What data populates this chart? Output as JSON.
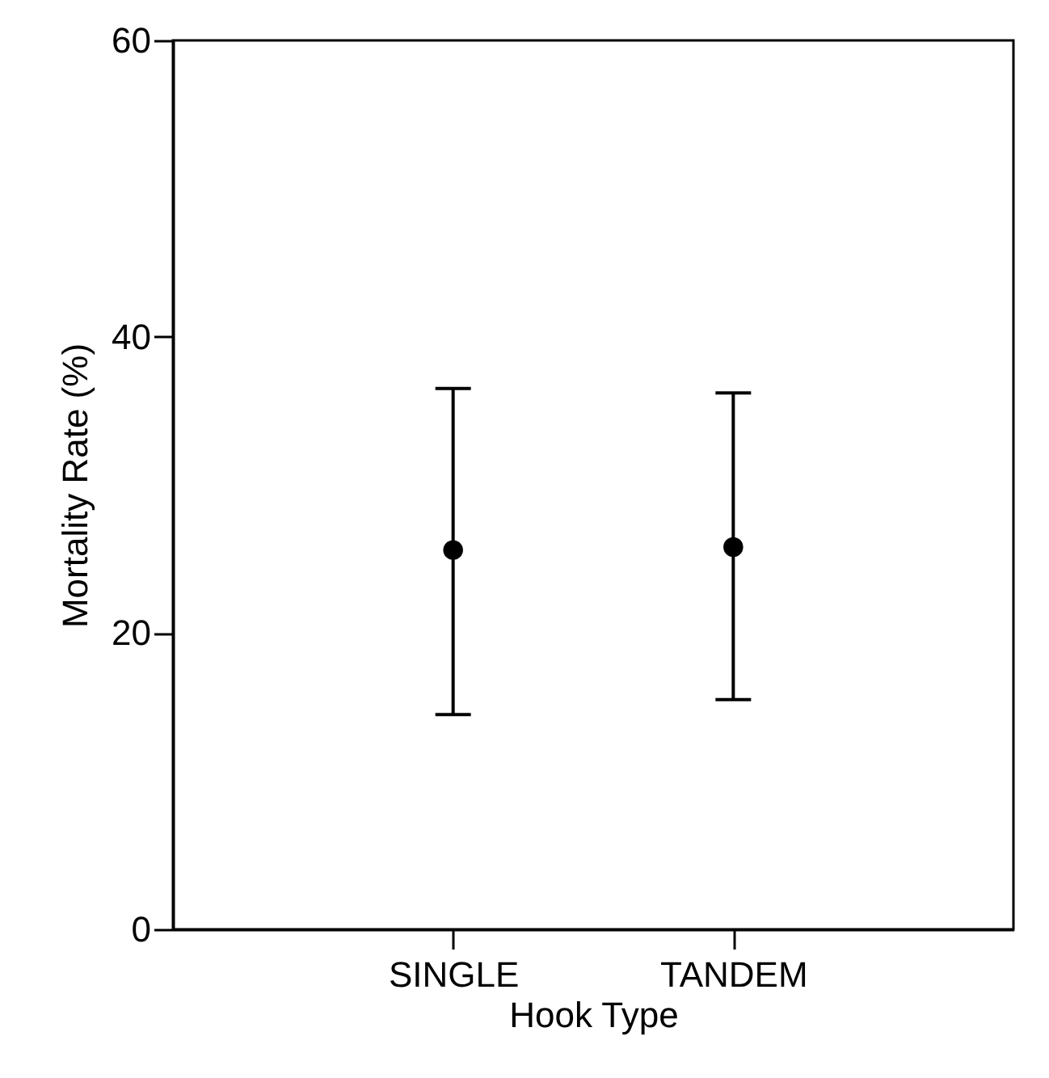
{
  "chart_data": {
    "type": "scatter",
    "xlabel": "Hook Type",
    "ylabel": "Mortality Rate (%)",
    "categories": [
      "SINGLE",
      "TANDEM"
    ],
    "series": [
      {
        "color": "#000000",
        "values": [
          25.6,
          25.8
        ],
        "errors": [
          [
            14.5,
            36.5
          ],
          [
            15.5,
            36.2
          ]
        ]
      }
    ],
    "ylim": [
      0,
      60
    ],
    "yticks": [
      0,
      20,
      40,
      60
    ],
    "grid": false,
    "marker": "circle"
  }
}
